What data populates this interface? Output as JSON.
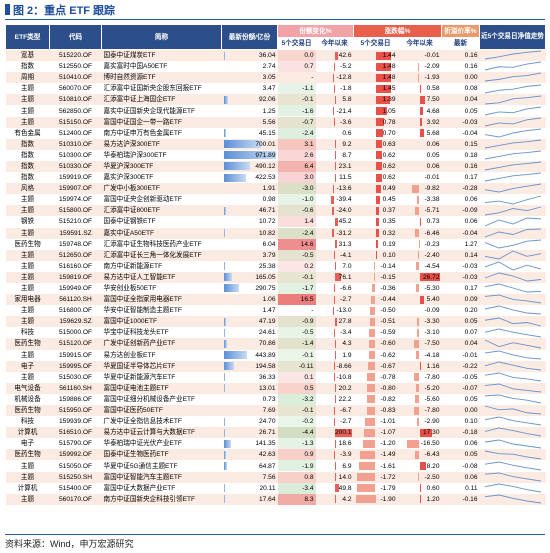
{
  "header": {
    "title": "图 2：重点 ETF 跟踪"
  },
  "table": {
    "columns": [
      "ETF类型",
      "代码",
      "简称",
      "最新份额/亿份",
      "份额变化%",
      "涨跌幅%",
      "折溢价率%",
      "近5个交易日净值走势"
    ],
    "subcolumns": [
      "5个交易日",
      "今年以来",
      "5个交易日",
      "今年以来",
      "最新"
    ],
    "rows": [
      [
        "宽基",
        "515220.OF",
        "国泰中证煤炭ETF",
        "36.04",
        "0.0",
        "42.6",
        "1.44",
        "-0.01",
        "0.16",
        [
          0,
          0.4,
          0.9,
          1.2,
          1.44
        ]
      ],
      [
        "指数",
        "512550.OF",
        "嘉实富时中国A50ETF",
        "2.74",
        "0.7",
        "-5.2",
        "1.48",
        "-2.09",
        "0.16",
        [
          0,
          0.6,
          0.5,
          1.1,
          1.48
        ]
      ],
      [
        "周期",
        "510410.OF",
        "博时自然资源ETF",
        "3.05",
        "-",
        "-12.8",
        "1.48",
        "-1.93",
        "0.00",
        [
          0,
          0.3,
          0.8,
          1.0,
          1.48
        ]
      ],
      [
        "主题",
        "560070.OF",
        "汇添富中证国新央企股东回报ETF",
        "3.47",
        "-1.1",
        "-1.8",
        "1.45",
        "0.58",
        "0.08",
        [
          0,
          0.5,
          0.7,
          1.2,
          1.45
        ]
      ],
      [
        "主题",
        "510810.OF",
        "汇添富中证上海国企ETF",
        "92.06",
        "-0.1",
        "5.8",
        "1.39",
        "7.50",
        "0.04",
        [
          0,
          0.2,
          0.9,
          1.1,
          1.39
        ]
      ],
      [
        "主题",
        "562850.OF",
        "嘉实中证国新央企现代能源ETF",
        "1.25",
        "-1.6",
        "-21.4",
        "1.05",
        "4.68",
        "0.05",
        [
          0,
          0.4,
          0.3,
          0.8,
          1.05
        ]
      ],
      [
        "主题",
        "515150.OF",
        "富国中证国企一带一路ETF",
        "5.56",
        "-0.7",
        "-3.6",
        "0.78",
        "3.92",
        "-0.03",
        [
          0,
          0.3,
          0.2,
          0.6,
          0.78
        ]
      ],
      [
        "有色金属",
        "512400.OF",
        "南方中证申万有色金属ETF",
        "45.15",
        "-2.4",
        "0.6",
        "0.70",
        "5.68",
        "-0.04",
        [
          0,
          -0.3,
          0.2,
          0.5,
          0.7
        ]
      ],
      [
        "指数",
        "510310.OF",
        "易方达沪深300ETF",
        "700.01",
        "3.1",
        "9.2",
        "0.63",
        "0.06",
        "0.15",
        [
          0,
          0.2,
          0.4,
          0.5,
          0.63
        ]
      ],
      [
        "指数",
        "510300.OF",
        "华泰柏瑞沪深300ETF",
        "971.89",
        "2.6",
        "8.7",
        "0.62",
        "0.05",
        "0.18",
        [
          0,
          0.2,
          0.4,
          0.5,
          0.62
        ]
      ],
      [
        "指数",
        "510330.OF",
        "华夏沪深300ETF",
        "490.12",
        "6.4",
        "23.1",
        "0.62",
        "0.06",
        "0.16",
        [
          0,
          0.2,
          0.4,
          0.5,
          0.62
        ]
      ],
      [
        "指数",
        "159919.OF",
        "嘉实沪深300ETF",
        "422.53",
        "3.0",
        "11.5",
        "0.62",
        "-0.01",
        "0.17",
        [
          0,
          0.2,
          0.4,
          0.5,
          0.62
        ]
      ],
      [
        "风格",
        "159907.OF",
        "广发中小板300ETF",
        "1.91",
        "-3.0",
        "-13.6",
        "0.49",
        "-9.82",
        "-0.28",
        [
          0,
          -0.2,
          0.1,
          0.3,
          0.49
        ]
      ],
      [
        "主题",
        "159974.OF",
        "富国中证央企创新驱动ETF",
        "0.98",
        "-1.0",
        "-39.4",
        "0.45",
        "-3.38",
        "0.06",
        [
          0,
          0.1,
          -0.1,
          0.2,
          0.45
        ]
      ],
      [
        "主题",
        "515800.OF",
        "汇添富中证800ETF",
        "46.71",
        "-0.6",
        "-24.0",
        "0.37",
        "-5.71",
        "-0.09",
        [
          0,
          0.1,
          0.3,
          0.2,
          0.37
        ]
      ],
      [
        "钢铁",
        "515210.OF",
        "国泰中证钢铁ETF",
        "10.72",
        "1.4",
        "45.2",
        "0.35",
        "0.73",
        "0.06",
        [
          0,
          0.3,
          0.1,
          0.4,
          0.35
        ]
      ],
      [
        "主题",
        "159591.SZ",
        "嘉实中证A50ETF",
        "10.82",
        "-2.4",
        "-31.2",
        "0.32",
        "-6.46",
        "-0.04",
        [
          0,
          0.2,
          0.1,
          0.3,
          0.32
        ]
      ],
      [
        "医药生物",
        "159748.OF",
        "汇添富中证生物科技医药产业ETF",
        "6.04",
        "14.6",
        "31.3",
        "0.19",
        "-0.23",
        "1.27",
        [
          0,
          -0.4,
          -0.2,
          0.1,
          0.19
        ]
      ],
      [
        "主题",
        "512650.OF",
        "汇添富中证长三角一体化发展ETF",
        "3.79",
        "-0.5",
        "-4.1",
        "0.10",
        "-2.40",
        "0.14",
        [
          0,
          -0.1,
          0.2,
          0.0,
          0.1
        ]
      ],
      [
        "主题",
        "516160.OF",
        "南方中证新能源ETF",
        "25.38",
        "0.2",
        "7.0",
        "-0.14",
        "-4.54",
        "-0.03",
        [
          0,
          0.3,
          -0.2,
          0.1,
          -0.14
        ]
      ],
      [
        "主题",
        "159819.OF",
        "易方达中证人工智能ETF",
        "165.05",
        "-0.1",
        "76.1",
        "-0.15",
        "26.72",
        "-0.03",
        [
          0,
          0.5,
          0.2,
          -0.3,
          -0.15
        ]
      ],
      [
        "主题",
        "159949.OF",
        "华安创业板50ETF",
        "290.75",
        "-1.7",
        "-6.6",
        "-0.36",
        "-5.30",
        "0.17",
        [
          0,
          0.2,
          -0.1,
          -0.4,
          -0.36
        ]
      ],
      [
        "家用电器",
        "561120.SH",
        "富国中证全指家用电器ETF",
        "1.06",
        "16.5",
        "-2.7",
        "-0.44",
        "5.40",
        "0.09",
        [
          0,
          0.1,
          -0.2,
          -0.3,
          -0.44
        ]
      ],
      [
        "主题",
        "516800.OF",
        "华安中证智能制造主题ETF",
        "1.47",
        "-",
        "-13.0",
        "-0.50",
        "-0.09",
        "0.20",
        [
          0,
          0.3,
          -0.1,
          -0.4,
          -0.5
        ]
      ],
      [
        "主题",
        "159629.SZ",
        "富国中证1000ETF",
        "47.19",
        "-0.9",
        "27.8",
        "-0.51",
        "-3.30",
        "0.05",
        [
          0,
          0.2,
          -0.3,
          -0.2,
          -0.51
        ]
      ],
      [
        "科技",
        "515000.OF",
        "华宝中证科技龙头ETF",
        "24.61",
        "-0.5",
        "-3.4",
        "-0.59",
        "-3.10",
        "0.07",
        [
          0,
          0.4,
          0.0,
          -0.3,
          -0.59
        ]
      ],
      [
        "医药生物",
        "515120.OF",
        "广发中证创新药产业ETF",
        "70.86",
        "-1.4",
        "4.3",
        "-0.60",
        "-7.50",
        "0.04",
        [
          0,
          -0.5,
          -0.2,
          -0.4,
          -0.6
        ]
      ],
      [
        "主题",
        "159915.OF",
        "易方达创业板ETF",
        "443.89",
        "-0.1",
        "1.9",
        "-0.62",
        "-4.18",
        "-0.01",
        [
          0,
          0.2,
          -0.2,
          -0.5,
          -0.62
        ]
      ],
      [
        "电子",
        "159995.OF",
        "华夏国证半导体芯片ETF",
        "194.58",
        "-0.11",
        "-8.66",
        "-0.67",
        "1.16",
        "-0.22",
        [
          0,
          0.6,
          0.1,
          -0.4,
          -0.67
        ]
      ],
      [
        "主题",
        "515030.OF",
        "华夏中证新能源汽车ETF",
        "36.33",
        "0.1",
        "-10.8",
        "-0.78",
        "-7.80",
        "-0.05",
        [
          0,
          0.3,
          -0.3,
          -0.5,
          -0.78
        ]
      ],
      [
        "电气设备",
        "561160.SH",
        "富国中证电池主题ETF",
        "13.01",
        "0.5",
        "20.2",
        "-0.80",
        "-5.20",
        "-0.07",
        [
          0,
          0.2,
          -0.4,
          -0.6,
          -0.8
        ]
      ],
      [
        "机械设备",
        "159886.OF",
        "富国中证细分机械设备产业ETF",
        "0.73",
        "-3.2",
        "22.2",
        "-0.82",
        "-5.60",
        "0.05",
        [
          0,
          0.1,
          -0.3,
          -0.5,
          -0.82
        ]
      ],
      [
        "医药生物",
        "515950.OF",
        "富国中证医药50ETF",
        "7.69",
        "-0.1",
        "-6.7",
        "-0.83",
        "-7.80",
        "0.00",
        [
          0,
          -0.4,
          -0.3,
          -0.7,
          -0.83
        ]
      ],
      [
        "科技",
        "159939.OF",
        "广发中证全指信息技术ETF",
        "24.70",
        "-0.2",
        "-2.7",
        "-1.01",
        "-2.90",
        "0.10",
        [
          0,
          0.5,
          -0.2,
          -0.6,
          -1.01
        ]
      ],
      [
        "计算机",
        "516510.OF",
        "易方达中证云计算与大数据ETF",
        "26.71",
        "-4.4",
        "200.1",
        "-1.07",
        "17.30",
        "-0.18",
        [
          0,
          0.8,
          0.2,
          -0.5,
          -1.07
        ]
      ],
      [
        "电子",
        "515790.OF",
        "华泰柏瑞中证光伏产业ETF",
        "141.35",
        "-1.3",
        "18.6",
        "-1.20",
        "-16.50",
        "0.06",
        [
          0,
          0.4,
          -0.4,
          -0.8,
          -1.2
        ]
      ],
      [
        "医药生物",
        "159992.OF",
        "国泰中证生物医药ETF",
        "42.63",
        "0.9",
        "-3.9",
        "-1.49",
        "-6.43",
        "0.05",
        [
          0,
          -0.5,
          -0.6,
          -1.1,
          -1.49
        ]
      ],
      [
        "主题",
        "515050.OF",
        "华夏中证5G通信主题ETF",
        "64.87",
        "-1.9",
        "6.9",
        "-1.61",
        "8.20",
        "-0.08",
        [
          0,
          0.6,
          -0.3,
          -1.0,
          -1.61
        ]
      ],
      [
        "主题",
        "515250.SH",
        "富国中证智能汽车主题ETF",
        "7.56",
        "0.8",
        "14.0",
        "-1.72",
        "-2.50",
        "0.06",
        [
          0,
          0.3,
          -0.6,
          -1.2,
          -1.72
        ]
      ],
      [
        "计算机",
        "515400.OF",
        "富国中证大数据产业ETF",
        "20.11",
        "-3.4",
        "49.8",
        "-1.79",
        "0.60",
        "0.11",
        [
          0,
          0.9,
          0.1,
          -1.0,
          -1.79
        ]
      ],
      [
        "主题",
        "560170.OF",
        "南方中证国新央企科技引领ETF",
        "17.64",
        "8.3",
        "4.2",
        "-1.90",
        "1.20",
        "-0.16",
        [
          0,
          0.5,
          -0.5,
          -1.3,
          -1.9
        ]
      ]
    ]
  },
  "footer": {
    "source": "资料来源：Wind，申万宏源研究"
  }
}
